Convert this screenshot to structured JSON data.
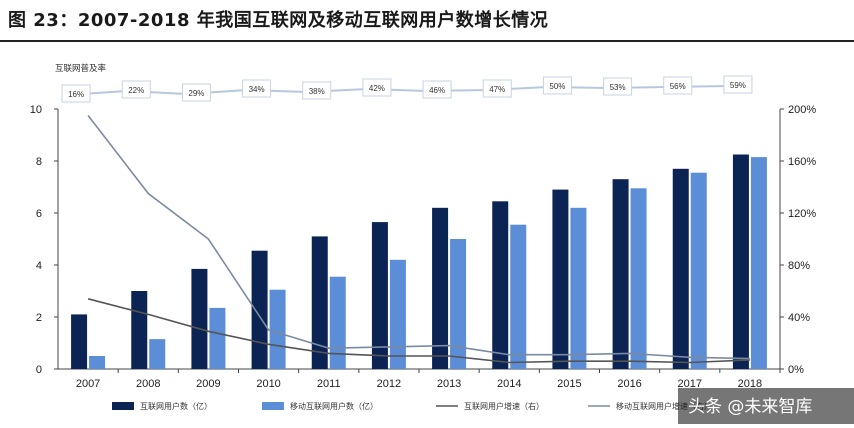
{
  "header": {
    "title": "图 23：2007-2018 年我国互联网及移动互联网用户数增长情况"
  },
  "watermark": "头条 @未来智库",
  "chart_data": {
    "type": "bar",
    "categories": [
      "2007",
      "2008",
      "2009",
      "2010",
      "2011",
      "2012",
      "2013",
      "2014",
      "2015",
      "2016",
      "2017",
      "2018"
    ],
    "ylim_left": [
      0,
      10
    ],
    "left_ticks": [
      "0",
      "2",
      "4",
      "6",
      "8",
      "10"
    ],
    "ylim_right": [
      0,
      2.0
    ],
    "right_ticks": [
      "0%",
      "40%",
      "80%",
      "120%",
      "160%",
      "200%"
    ],
    "series": [
      {
        "name": "互联网用户数（亿）",
        "axis": "left",
        "kind": "bar",
        "color": "#0b2454",
        "values": [
          2.1,
          3.0,
          3.85,
          4.55,
          5.1,
          5.65,
          6.2,
          6.45,
          6.9,
          7.3,
          7.7,
          8.25
        ]
      },
      {
        "name": "移动互联网用户数（亿）",
        "axis": "left",
        "kind": "bar",
        "color": "#5b8ed6",
        "values": [
          0.5,
          1.15,
          2.35,
          3.05,
          3.55,
          4.2,
          5.0,
          5.55,
          6.2,
          6.95,
          7.55,
          8.15
        ]
      },
      {
        "name": "互联网用户增速（右）",
        "axis": "right",
        "kind": "line",
        "color": "#555555",
        "values": [
          0.54,
          0.42,
          0.29,
          0.19,
          0.12,
          0.1,
          0.1,
          0.05,
          0.06,
          0.06,
          0.05,
          0.07
        ]
      },
      {
        "name": "移动互联网用户增速（右）",
        "axis": "right",
        "kind": "line",
        "color": "#7b8aa3",
        "values": [
          1.95,
          1.35,
          1.0,
          0.3,
          0.16,
          0.17,
          0.18,
          0.11,
          0.11,
          0.12,
          0.09,
          0.08
        ]
      }
    ],
    "penetration": {
      "label": "互联网普及率",
      "values": [
        "16%",
        "22%",
        "29%",
        "34%",
        "38%",
        "42%",
        "46%",
        "47%",
        "50%",
        "53%",
        "56%",
        "59%"
      ]
    }
  }
}
